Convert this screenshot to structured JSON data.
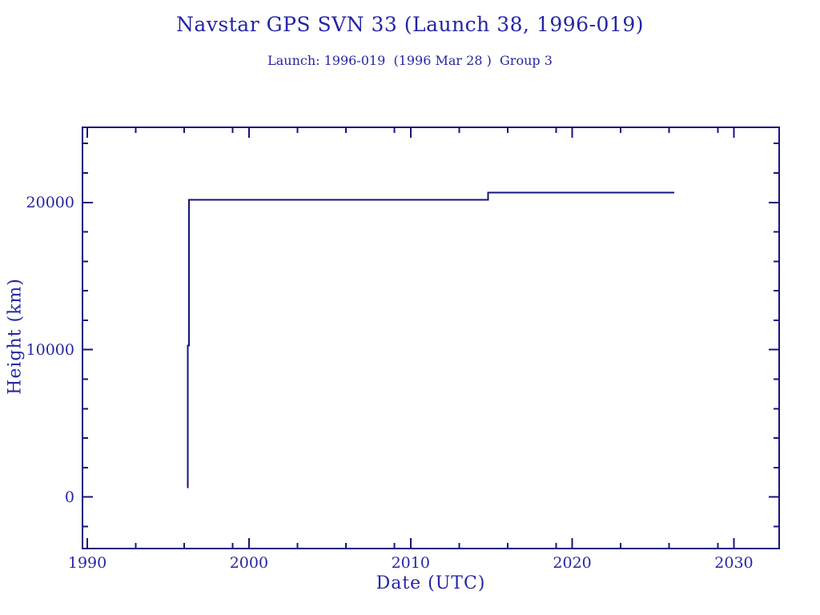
{
  "header": {
    "title": "Navstar GPS SVN 33 (Launch 38, 1996-019)",
    "subtitle": "Launch: 1996-019  (1996 Mar 28 )  Group 3"
  },
  "colors": {
    "background": "#ffffff",
    "line": "#14147d",
    "text": "#2525a5"
  },
  "chart_data": {
    "type": "line",
    "title": "Navstar GPS SVN 33 (Launch 38, 1996-019)",
    "subtitle": "Launch: 1996-019  (1996 Mar 28 )  Group 3",
    "xlabel": "Date (UTC)",
    "ylabel": "Height (km)",
    "xlim": [
      1989.7,
      2032.8
    ],
    "ylim": [
      -3500,
      25100
    ],
    "x_major_ticks": [
      1990,
      2000,
      2010,
      2020,
      2030
    ],
    "x_minor_ticks": [
      1993,
      1996,
      1999,
      2003,
      2006,
      2009,
      2013,
      2016,
      2019,
      2023,
      2026,
      2029
    ],
    "y_major_ticks": [
      0,
      10000,
      20000
    ],
    "y_minor_ticks": [
      -2000,
      2000,
      4000,
      6000,
      8000,
      12000,
      14000,
      16000,
      18000,
      22000,
      24000
    ],
    "grid": false,
    "legend": null,
    "frame": "box-with-inward-ticks",
    "series": [
      {
        "name": "Height (km)",
        "points": [
          [
            1996.22,
            600
          ],
          [
            1996.22,
            10270
          ],
          [
            1996.29,
            10270
          ],
          [
            1996.29,
            20180
          ],
          [
            2014.8,
            20180
          ],
          [
            2014.8,
            20670
          ],
          [
            2026.3,
            20670
          ]
        ]
      }
    ]
  }
}
